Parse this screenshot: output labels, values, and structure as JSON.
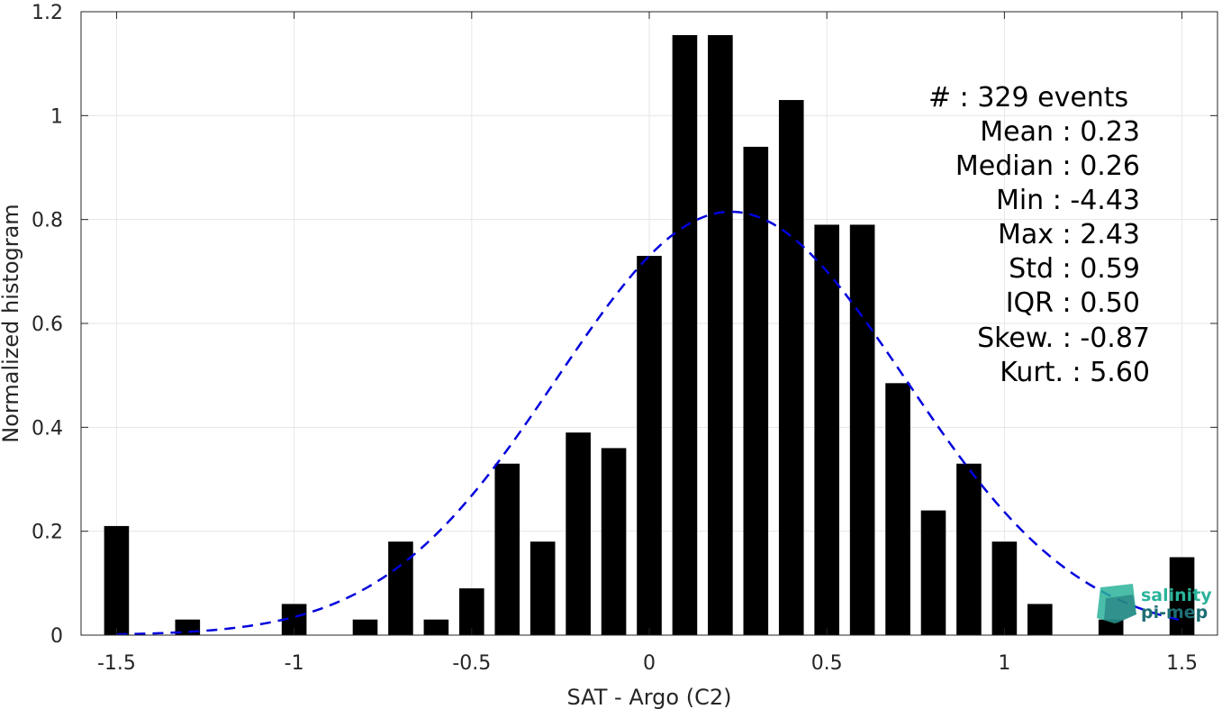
{
  "chart_data": {
    "type": "bar",
    "xlabel": "SAT - Argo (C2)",
    "ylabel": "Normalized histogram",
    "xlim": [
      -1.6,
      1.6
    ],
    "ylim": [
      0,
      1.2
    ],
    "xticks": [
      -1.5,
      -1,
      -0.5,
      0,
      0.5,
      1,
      1.5
    ],
    "xtick_labels": [
      "-1.5",
      "-1",
      "-0.5",
      "0",
      "0.5",
      "1",
      "1.5"
    ],
    "yticks": [
      0,
      0.2,
      0.4,
      0.6,
      0.8,
      1,
      1.2
    ],
    "ytick_labels": [
      "0",
      "0.2",
      "0.4",
      "0.6",
      "0.8",
      "1",
      "1.2"
    ],
    "grid": true,
    "bar_width": 0.07,
    "bar_color": "#000000",
    "fit_color": "#0000dd",
    "x": [
      -1.5,
      -1.3,
      -1.0,
      -0.8,
      -0.7,
      -0.6,
      -0.5,
      -0.4,
      -0.3,
      -0.2,
      -0.1,
      0.0,
      0.1,
      0.2,
      0.3,
      0.4,
      0.5,
      0.6,
      0.7,
      0.8,
      0.9,
      1.0,
      1.1,
      1.3,
      1.5
    ],
    "values": [
      0.21,
      0.03,
      0.06,
      0.03,
      0.18,
      0.03,
      0.09,
      0.33,
      0.18,
      0.39,
      0.36,
      0.73,
      1.155,
      1.155,
      0.94,
      1.03,
      0.79,
      0.79,
      0.485,
      0.24,
      0.33,
      0.18,
      0.06,
      0.03,
      0.15
    ],
    "fit": {
      "type": "gaussian",
      "style": "dashed",
      "mean": 0.23,
      "std": 0.49,
      "peak": 0.815,
      "x_range": [
        -1.5,
        1.5
      ]
    }
  },
  "stats": [
    {
      "label": "#  : 329 events"
    },
    {
      "label": "Mean : 0.23"
    },
    {
      "label": "Median : 0.26"
    },
    {
      "label": "Min : -4.43"
    },
    {
      "label": "Max : 2.43"
    },
    {
      "label": "Std : 0.59"
    },
    {
      "label": "IQR : 0.50"
    },
    {
      "label": "Skew. : -0.87"
    },
    {
      "label": "Kurt. : 5.60"
    }
  ],
  "logo": {
    "line1": "salinity",
    "line2": "pi-mep",
    "color1": "#2bb39b",
    "color2": "#1d6e74"
  }
}
